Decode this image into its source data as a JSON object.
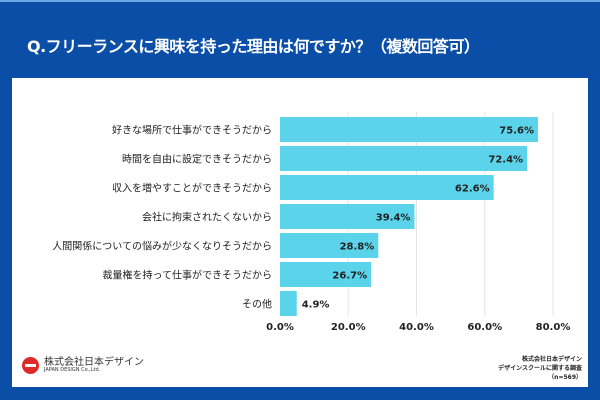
{
  "title": "Q.フリーランスに興味を持った理由は何ですか？（複数回答可）",
  "chart_data": {
    "type": "bar",
    "orientation": "horizontal",
    "categories": [
      "好きな場所で仕事ができそうだから",
      "時間を自由に設定できそうだから",
      "収入を増やすことができそうだから",
      "会社に拘束されたくないから",
      "人間関係についての悩みが少なくなりそうだから",
      "裁量権を持って仕事ができそうだから",
      "その他"
    ],
    "values": [
      75.6,
      72.4,
      62.6,
      39.4,
      28.8,
      26.7,
      4.9
    ],
    "value_labels": [
      "75.6%",
      "72.4%",
      "62.6%",
      "39.4%",
      "28.8%",
      "26.7%",
      "4.9%"
    ],
    "xlim": [
      0,
      80
    ],
    "xticks": [
      "0.0%",
      "20.0%",
      "40.0%",
      "60.0%",
      "80.0%"
    ],
    "grid": true,
    "bar_color": "#5bd3ea"
  },
  "logo": {
    "jp": "株式会社日本デザイン",
    "en": "JAPAN DESIGN Co.,Ltd."
  },
  "source": {
    "line1": "株式会社日本デザイン",
    "line2": "デザインスクールに関する調査",
    "line3": "（n=569）"
  }
}
